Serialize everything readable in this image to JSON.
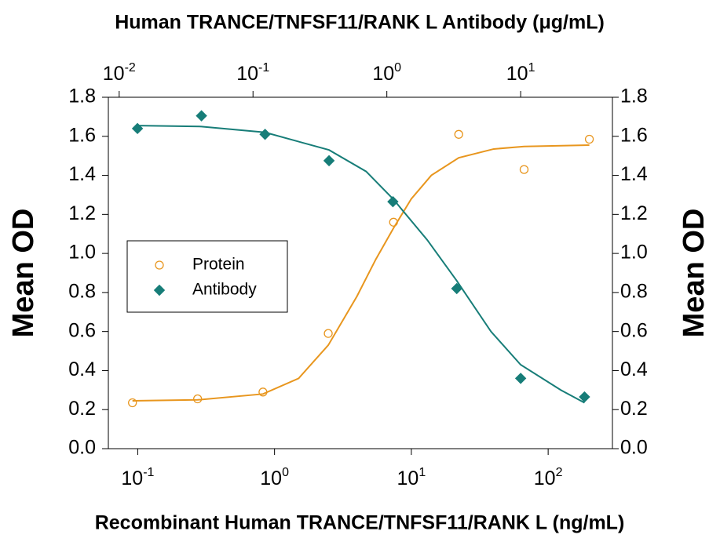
{
  "chart_data": {
    "type": "scatter",
    "x_label": "Recombinant Human TRANCE/TNFSF11/RANK L (ng/mL)",
    "x2_label": "Human TRANCE/TNFSF11/RANK L Antibody (μg/mL)",
    "y_label": "Mean OD",
    "y2_label": "Mean OD",
    "x_scale": "log",
    "xlim": [
      0.061,
      295
    ],
    "xticks": [
      {
        "value": 0.1,
        "label": "10",
        "exponent": "-1"
      },
      {
        "value": 1,
        "label": "10",
        "exponent": "0"
      },
      {
        "value": 10,
        "label": "10",
        "exponent": "1"
      },
      {
        "value": 100,
        "label": "10",
        "exponent": "2"
      }
    ],
    "x2lim": [
      0.0083,
      48.5
    ],
    "x2ticks": [
      {
        "value": 0.01,
        "label": "10",
        "exponent": "-2"
      },
      {
        "value": 0.1,
        "label": "10",
        "exponent": "-1"
      },
      {
        "value": 1,
        "label": "10",
        "exponent": "0"
      },
      {
        "value": 10,
        "label": "10",
        "exponent": "1"
      }
    ],
    "ylim": [
      0,
      1.8
    ],
    "yticks": [
      {
        "value": 0,
        "label": "0.0"
      },
      0.2,
      0.4,
      0.6,
      0.8,
      {
        "value": 1,
        "label": "1.0"
      },
      1.2,
      1.4,
      1.6,
      1.8
    ],
    "y2lim": [
      0,
      1.8
    ],
    "y2ticks": [
      {
        "value": 0,
        "label": "0.0"
      },
      0.2,
      0.4,
      0.6,
      0.8,
      {
        "value": 1,
        "label": "1.0"
      },
      1.2,
      1.4,
      1.6,
      1.8
    ],
    "legend": "center-left",
    "series": [
      {
        "name": "Protein",
        "color": "#e8961e",
        "marker": "circle",
        "axis": "x",
        "x": [
          0.0915,
          0.274,
          0.823,
          2.47,
          7.41,
          22.2,
          66.7,
          200
        ],
        "values": [
          0.235,
          0.255,
          0.29,
          0.59,
          1.16,
          1.61,
          1.43,
          1.585
        ],
        "fit": {
          "x": [
            0.0915,
            0.274,
            0.823,
            1.5,
            2.47,
            4,
            5.5,
            7.41,
            10,
            14,
            22.2,
            40,
            66.7,
            200
          ],
          "values": [
            0.245,
            0.25,
            0.28,
            0.36,
            0.53,
            0.78,
            0.97,
            1.13,
            1.28,
            1.4,
            1.49,
            1.535,
            1.548,
            1.555
          ]
        }
      },
      {
        "name": "Antibody",
        "color": "#177d78",
        "marker": "diamond",
        "axis": "x2",
        "x": [
          0.0137,
          0.0412,
          0.123,
          0.37,
          1.11,
          3.33,
          10,
          30
        ],
        "values": [
          1.64,
          1.705,
          1.61,
          1.475,
          1.265,
          0.82,
          0.36,
          0.265
        ],
        "fit": {
          "x": [
            0.0137,
            0.0412,
            0.123,
            0.37,
            0.7,
            1.11,
            2,
            3.33,
            6,
            10,
            20,
            30
          ],
          "values": [
            1.655,
            1.65,
            1.62,
            1.53,
            1.42,
            1.28,
            1.07,
            0.86,
            0.6,
            0.43,
            0.3,
            0.235
          ]
        }
      }
    ]
  }
}
